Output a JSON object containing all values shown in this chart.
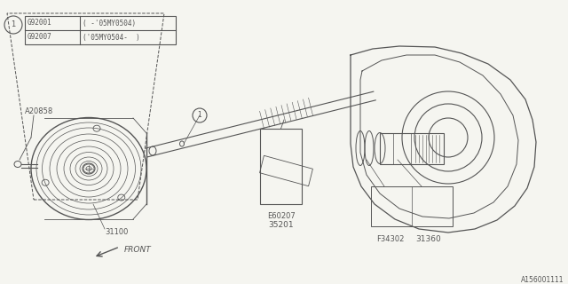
{
  "bg_color": "#f5f5f0",
  "line_color": "#555555",
  "fig_width": 6.4,
  "fig_height": 3.2,
  "dpi": 100,
  "table_rows": [
    [
      "G92001",
      "( -'05MY0504)"
    ],
    [
      "G92007",
      "('05MY0504-  )"
    ]
  ],
  "diagram_id": "A156001111"
}
